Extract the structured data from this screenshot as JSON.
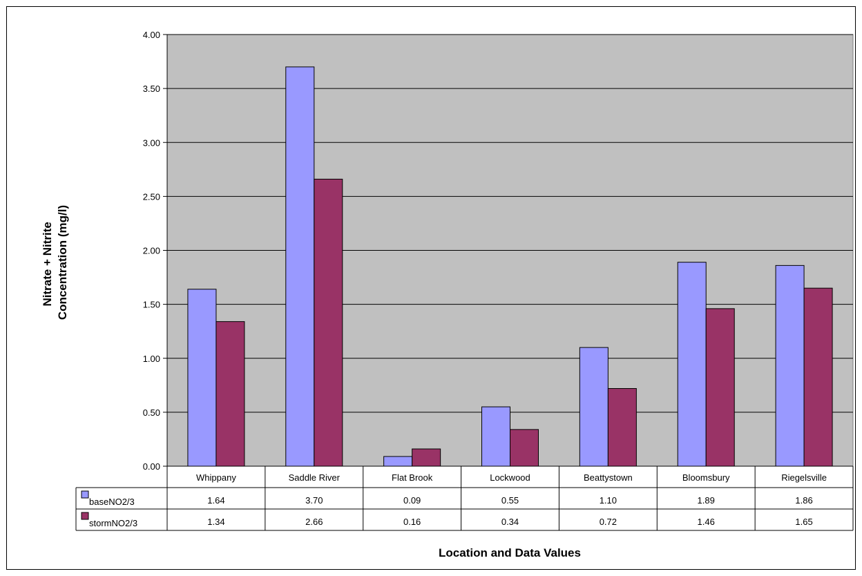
{
  "chart_data": {
    "type": "bar",
    "title": "",
    "xlabel": "Location and Data Values",
    "ylabel_line1": "Nitrate + Nitrite",
    "ylabel_line2": "Concentration (mg/l)",
    "categories": [
      "Whippany",
      "Saddle River",
      "Flat Brook",
      "Lockwood",
      "Beattystown",
      "Bloomsbury",
      "Riegelsville"
    ],
    "series": [
      {
        "name": "baseNO2/3",
        "color": "#9999ff",
        "values": [
          1.64,
          3.7,
          0.09,
          0.55,
          1.1,
          1.89,
          1.86
        ]
      },
      {
        "name": "stormNO2/3",
        "color": "#993366",
        "values": [
          1.34,
          2.66,
          0.16,
          0.34,
          0.72,
          1.46,
          1.65
        ]
      }
    ],
    "ylim": [
      0,
      4
    ],
    "yticks": [
      0,
      0.5,
      1,
      1.5,
      2,
      2.5,
      3,
      3.5,
      4
    ],
    "ytick_labels": [
      "0.00",
      "0.50",
      "1.00",
      "1.50",
      "2.00",
      "2.50",
      "3.00",
      "3.50",
      "4.00"
    ],
    "table_values": [
      [
        "1.64",
        "3.70",
        "0.09",
        "0.55",
        "1.10",
        "1.89",
        "1.86"
      ],
      [
        "1.34",
        "2.66",
        "0.16",
        "0.34",
        "0.72",
        "1.46",
        "1.65"
      ]
    ],
    "grid": true,
    "plot_background": "#c0c0c0",
    "legend": "data-table"
  }
}
